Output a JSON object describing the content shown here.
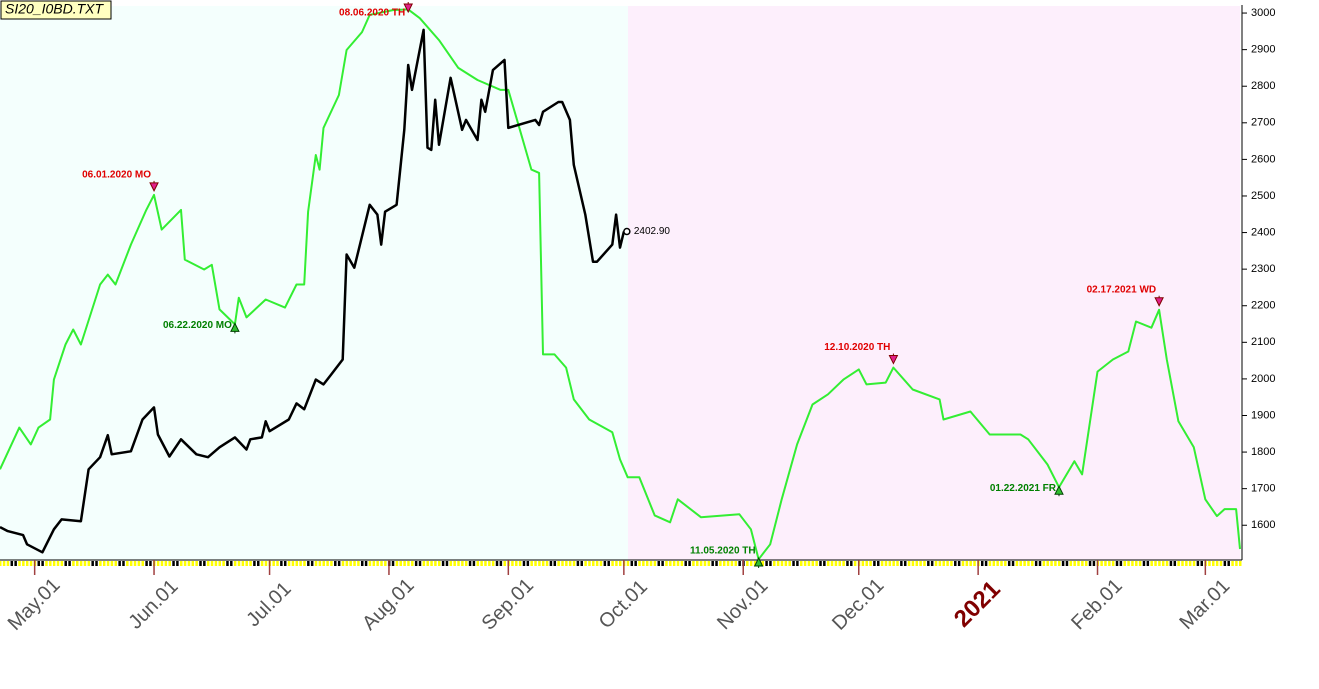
{
  "chart_data": {
    "type": "line",
    "title": "SI20_I0BD.TXT",
    "xlim": [
      "2020-04-22",
      "2021-03-10"
    ],
    "ylim": [
      1505,
      3022
    ],
    "yticks": [
      1600,
      1700,
      1800,
      1900,
      2000,
      2100,
      2200,
      2300,
      2400,
      2500,
      2600,
      2700,
      2800,
      2900,
      3000
    ],
    "xticks": [
      {
        "value": "2020-05-01",
        "label": "May.01"
      },
      {
        "value": "2020-06-01",
        "label": "Jun.01"
      },
      {
        "value": "2020-07-01",
        "label": "Jul.01"
      },
      {
        "value": "2020-08-01",
        "label": "Aug.01"
      },
      {
        "value": "2020-09-01",
        "label": "Sep.01"
      },
      {
        "value": "2020-10-01",
        "label": "Oct.01"
      },
      {
        "value": "2020-11-01",
        "label": "Nov.01"
      },
      {
        "value": "2020-12-01",
        "label": "Dec.01"
      },
      {
        "value": "2021-01-01",
        "label": "2021"
      },
      {
        "value": "2021-02-01",
        "label": "Feb.01"
      },
      {
        "value": "2021-03-01",
        "label": "Mar.01"
      }
    ],
    "series": [
      {
        "color": "#33ee33",
        "x": [
          "2020-04-22",
          "2020-04-27",
          "2020-04-30",
          "2020-05-02",
          "2020-05-05",
          "2020-05-06",
          "2020-05-09",
          "2020-05-11",
          "2020-05-13",
          "2020-05-18",
          "2020-05-20",
          "2020-05-22",
          "2020-05-26",
          "2020-05-30",
          "2020-06-01",
          "2020-06-03",
          "2020-06-08",
          "2020-06-09",
          "2020-06-14",
          "2020-06-16",
          "2020-06-18",
          "2020-06-22",
          "2020-06-23",
          "2020-06-25",
          "2020-06-30",
          "2020-07-05",
          "2020-07-08",
          "2020-07-10",
          "2020-07-11",
          "2020-07-13",
          "2020-07-14",
          "2020-07-15",
          "2020-07-19",
          "2020-07-21",
          "2020-07-25",
          "2020-07-27",
          "2020-08-02",
          "2020-08-06",
          "2020-08-09",
          "2020-08-14",
          "2020-08-19",
          "2020-08-24",
          "2020-08-30",
          "2020-09-01",
          "2020-09-04",
          "2020-09-07",
          "2020-09-09",
          "2020-09-10",
          "2020-09-13",
          "2020-09-16",
          "2020-09-18",
          "2020-09-22",
          "2020-09-28",
          "2020-09-30",
          "2020-10-02",
          "2020-10-05",
          "2020-10-09",
          "2020-10-13",
          "2020-10-15",
          "2020-10-21",
          "2020-10-31",
          "2020-11-03",
          "2020-11-05",
          "2020-11-08",
          "2020-11-11",
          "2020-11-15",
          "2020-11-19",
          "2020-11-23",
          "2020-11-27",
          "2020-12-01",
          "2020-12-03",
          "2020-12-08",
          "2020-12-10",
          "2020-12-15",
          "2020-12-22",
          "2020-12-23",
          "2020-12-30",
          "2021-01-04",
          "2021-01-12",
          "2021-01-14",
          "2021-01-19",
          "2021-01-22",
          "2021-01-26",
          "2021-01-28",
          "2021-02-01",
          "2021-02-05",
          "2021-02-09",
          "2021-02-11",
          "2021-02-15",
          "2021-02-17",
          "2021-02-19",
          "2021-02-22",
          "2021-02-26",
          "2021-03-01",
          "2021-03-04",
          "2021-03-06",
          "2021-03-09",
          "2021-03-10"
        ],
        "values": [
          1753,
          1867,
          1821,
          1867,
          1889,
          1998,
          2094,
          2135,
          2094,
          2258,
          2285,
          2258,
          2367,
          2462,
          2503,
          2408,
          2462,
          2326,
          2299,
          2312,
          2190,
          2149,
          2222,
          2168,
          2217,
          2195,
          2258,
          2258,
          2457,
          2612,
          2572,
          2686,
          2776,
          2899,
          2948,
          2995,
          3008,
          3010,
          2986,
          2926,
          2850,
          2817,
          2790,
          2790,
          2681,
          2572,
          2563,
          2067,
          2067,
          2031,
          1944,
          1889,
          1854,
          1780,
          1731,
          1731,
          1627,
          1608,
          1671,
          1622,
          1630,
          1589,
          1507,
          1548,
          1671,
          1821,
          1930,
          1958,
          1998,
          2026,
          1985,
          1990,
          2031,
          1971,
          1944,
          1889,
          1911,
          1848,
          1848,
          1835,
          1766,
          1704,
          1775,
          1739,
          2020,
          2053,
          2075,
          2157,
          2140,
          2189,
          2053,
          1884,
          1813,
          1671,
          1625,
          1644,
          1644,
          1535
        ]
      },
      {
        "color": "#000000",
        "x": [
          "2020-04-22",
          "2020-04-24",
          "2020-04-28",
          "2020-04-29",
          "2020-05-03",
          "2020-05-06",
          "2020-05-08",
          "2020-05-13",
          "2020-05-15",
          "2020-05-18",
          "2020-05-20",
          "2020-05-21",
          "2020-05-26",
          "2020-05-29",
          "2020-06-01",
          "2020-06-02",
          "2020-06-05",
          "2020-06-08",
          "2020-06-12",
          "2020-06-15",
          "2020-06-18",
          "2020-06-22",
          "2020-06-25",
          "2020-06-26",
          "2020-06-29",
          "2020-06-30",
          "2020-07-01",
          "2020-07-06",
          "2020-07-08",
          "2020-07-10",
          "2020-07-13",
          "2020-07-15",
          "2020-07-17",
          "2020-07-20",
          "2020-07-21",
          "2020-07-23",
          "2020-07-27",
          "2020-07-29",
          "2020-07-30",
          "2020-07-31",
          "2020-08-03",
          "2020-08-05",
          "2020-08-06",
          "2020-08-07",
          "2020-08-10",
          "2020-08-11",
          "2020-08-12",
          "2020-08-13",
          "2020-08-14",
          "2020-08-17",
          "2020-08-20",
          "2020-08-21",
          "2020-08-24",
          "2020-08-25",
          "2020-08-26",
          "2020-08-28",
          "2020-08-31",
          "2020-09-01",
          "2020-09-08",
          "2020-09-09",
          "2020-09-10",
          "2020-09-14",
          "2020-09-15",
          "2020-09-17",
          "2020-09-18",
          "2020-09-21",
          "2020-09-23",
          "2020-09-24",
          "2020-09-28",
          "2020-09-29",
          "2020-09-30",
          "2020-10-01"
        ],
        "values": [
          1595,
          1584,
          1573,
          1548,
          1526,
          1589,
          1616,
          1611,
          1753,
          1786,
          1846,
          1794,
          1802,
          1889,
          1922,
          1848,
          1788,
          1835,
          1794,
          1786,
          1813,
          1840,
          1807,
          1835,
          1840,
          1884,
          1857,
          1889,
          1933,
          1917,
          1998,
          1985,
          2012,
          2053,
          2340,
          2304,
          2476,
          2449,
          2367,
          2457,
          2476,
          2681,
          2858,
          2790,
          2954,
          2632,
          2626,
          2763,
          2640,
          2823,
          2681,
          2708,
          2653,
          2763,
          2730,
          2844,
          2872,
          2686,
          2708,
          2694,
          2730,
          2757,
          2757,
          2708,
          2585,
          2449,
          2320,
          2320,
          2367,
          2449,
          2359,
          2402.9
        ],
        "value_labels": [
          null,
          null,
          null,
          null,
          null,
          null,
          null,
          null,
          null,
          null,
          null,
          null,
          null,
          null,
          null,
          null,
          null,
          null,
          null,
          null,
          null,
          null,
          null,
          null,
          null,
          null,
          null,
          null,
          null,
          null,
          null,
          null,
          null,
          null,
          null,
          null,
          null,
          null,
          null,
          null,
          null,
          null,
          null,
          null,
          null,
          null,
          null,
          null,
          null,
          null,
          null,
          null,
          null,
          null,
          null,
          null,
          null,
          null,
          null,
          null,
          null,
          null,
          null,
          null,
          null,
          null,
          null,
          null,
          null,
          null,
          null,
          "2402.90"
        ]
      }
    ],
    "annotations": [
      {
        "text": "06.01.2020 MO",
        "x": "2020-06-01",
        "kind": "peak"
      },
      {
        "text": "06.22.2020 MO",
        "x": "2020-06-22",
        "kind": "trough"
      },
      {
        "text": "08.06.2020 TH",
        "x": "2020-08-06",
        "kind": "peak"
      },
      {
        "text": "11.05.2020 TH",
        "x": "2020-11-05",
        "kind": "trough"
      },
      {
        "text": "12.10.2020 TH",
        "x": "2020-12-10",
        "kind": "peak"
      },
      {
        "text": "01.22.2021 FR",
        "x": "2021-01-22",
        "kind": "trough"
      },
      {
        "text": "02.17.2021 WD",
        "x": "2021-02-17",
        "kind": "peak"
      }
    ]
  }
}
